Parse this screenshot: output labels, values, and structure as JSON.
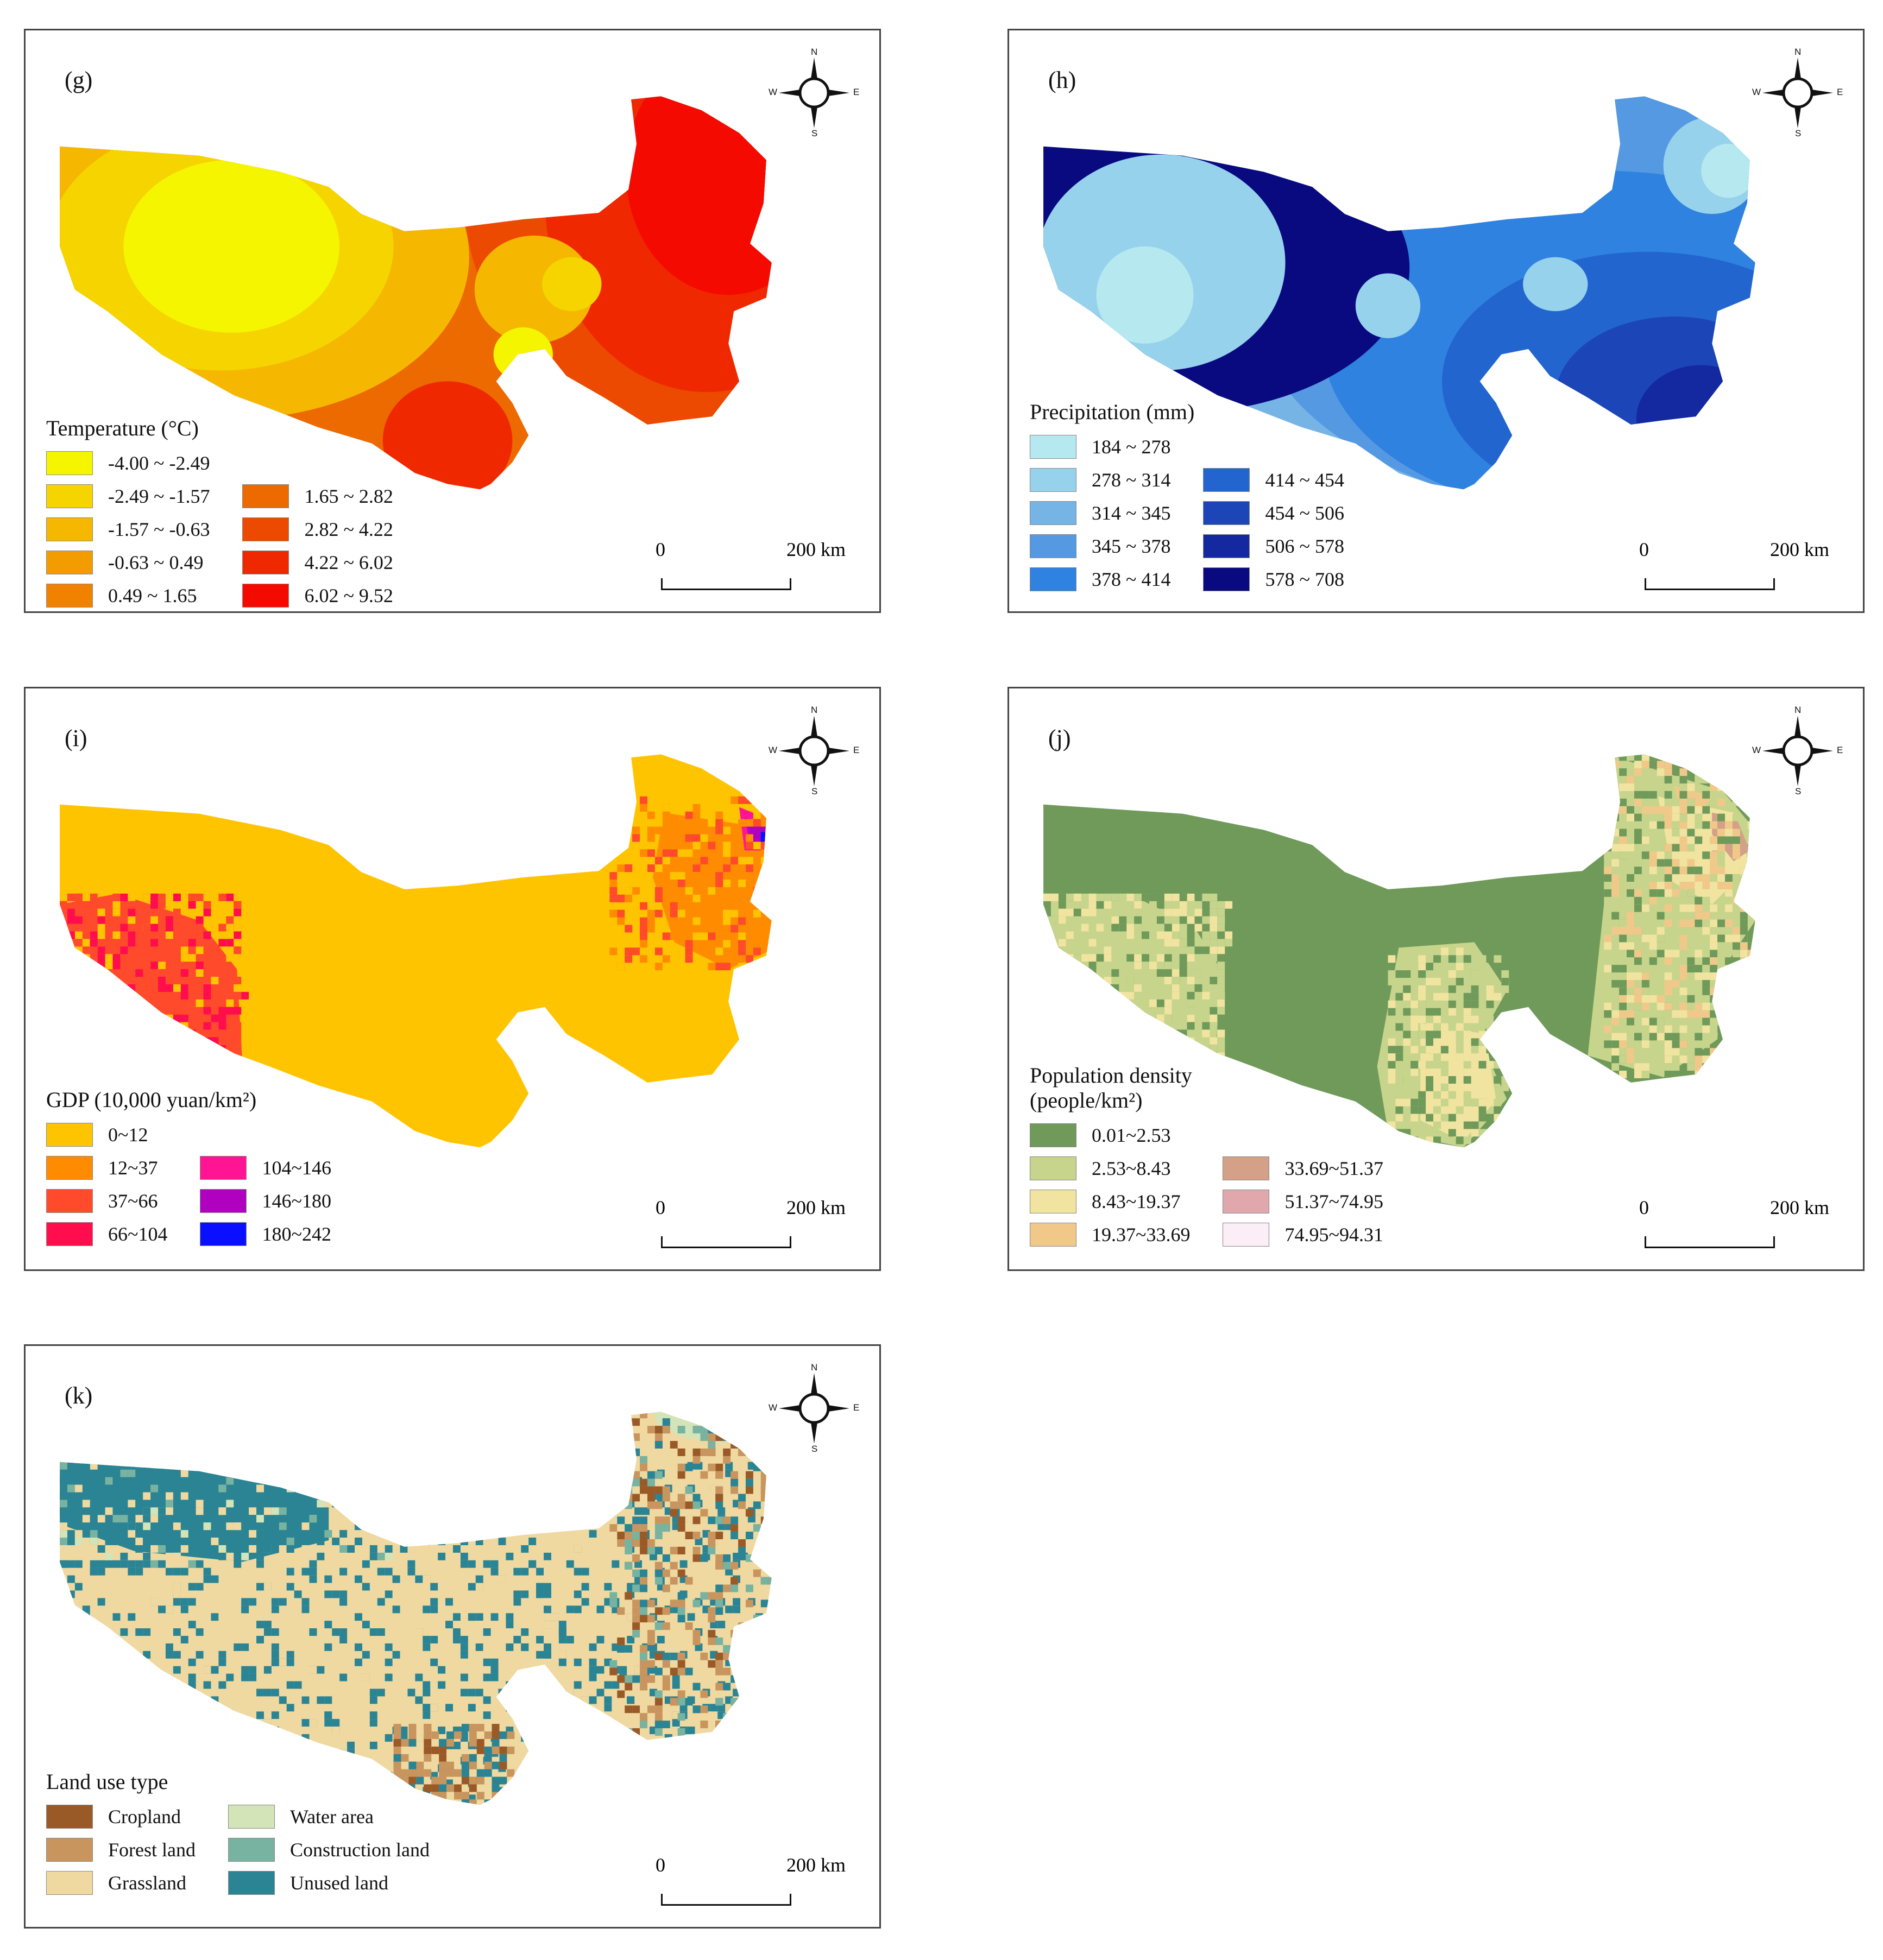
{
  "compass": {
    "north": "N",
    "south": "S",
    "east": "E",
    "west": "W"
  },
  "scale": {
    "start": "0",
    "end": "200 km"
  },
  "panels": [
    {
      "id": "g",
      "label": "(g)",
      "legend_title": "Temperature (°C)",
      "columns": [
        [
          {
            "label": "-4.00 ~ -2.49",
            "color": "#f5f500"
          },
          {
            "label": "-2.49 ~ -1.57",
            "color": "#f5d400"
          },
          {
            "label": "-1.57 ~ -0.63",
            "color": "#f5b700"
          },
          {
            "label": "-0.63 ~ 0.49",
            "color": "#f39c00"
          },
          {
            "label": "0.49 ~ 1.65",
            "color": "#f08200"
          }
        ],
        [
          {
            "label": "1.65 ~ 2.82",
            "color": "#ec6a00"
          },
          {
            "label": "2.82 ~ 4.22",
            "color": "#ec4a00"
          },
          {
            "label": "4.22 ~ 6.02",
            "color": "#f02800"
          },
          {
            "label": "6.02 ~ 9.52",
            "color": "#f50a00"
          }
        ]
      ]
    },
    {
      "id": "h",
      "label": "(h)",
      "legend_title": "Precipitation (mm)",
      "columns": [
        [
          {
            "label": "184 ~ 278",
            "color": "#b6e9ef"
          },
          {
            "label": "278 ~ 314",
            "color": "#97d2ec"
          },
          {
            "label": "314 ~ 345",
            "color": "#76b4e6"
          },
          {
            "label": "345 ~ 378",
            "color": "#5599e3"
          },
          {
            "label": "378 ~ 414",
            "color": "#2f82e0"
          }
        ],
        [
          {
            "label": "414 ~ 454",
            "color": "#2365cf"
          },
          {
            "label": "454 ~ 506",
            "color": "#1c46b8"
          },
          {
            "label": "506 ~ 578",
            "color": "#1428a0"
          },
          {
            "label": "578 ~ 708",
            "color": "#0a0a80"
          }
        ]
      ]
    },
    {
      "id": "i",
      "label": "(i)",
      "legend_title": "GDP (10,000 yuan/km²)",
      "columns": [
        [
          {
            "label": "0~12",
            "color": "#ffc400"
          },
          {
            "label": "12~37",
            "color": "#ff8c00"
          },
          {
            "label": "37~66",
            "color": "#ff4b2b"
          },
          {
            "label": "66~104",
            "color": "#ff0d4d"
          }
        ],
        [
          {
            "label": "104~146",
            "color": "#ff1493"
          },
          {
            "label": "146~180",
            "color": "#b000c0"
          },
          {
            "label": "180~242",
            "color": "#0a10ff"
          }
        ]
      ]
    },
    {
      "id": "j",
      "label": "(j)",
      "legend_title": "Population density\n(people/km²)",
      "columns": [
        [
          {
            "label": "0.01~2.53",
            "color": "#6f9a5a"
          },
          {
            "label": "2.53~8.43",
            "color": "#c6d48c"
          },
          {
            "label": "8.43~19.37",
            "color": "#f0e4a0"
          },
          {
            "label": "19.37~33.69",
            "color": "#f0c98a"
          }
        ],
        [
          {
            "label": "33.69~51.37",
            "color": "#d4a088"
          },
          {
            "label": "51.37~74.95",
            "color": "#e0a8ac"
          },
          {
            "label": "74.95~94.31",
            "color": "#fbeef6"
          }
        ]
      ]
    },
    {
      "id": "k",
      "label": "(k)",
      "legend_title": "Land use type",
      "columns": [
        [
          {
            "label": "Cropland",
            "color": "#9a5a28"
          },
          {
            "label": "Forest land",
            "color": "#c8955e"
          },
          {
            "label": "Grassland",
            "color": "#efd9a0"
          }
        ],
        [
          {
            "label": "Water area",
            "color": "#d3e4b8"
          },
          {
            "label": "Construction land",
            "color": "#78b2a0"
          },
          {
            "label": "Unused land",
            "color": "#2a8494"
          }
        ]
      ]
    }
  ]
}
